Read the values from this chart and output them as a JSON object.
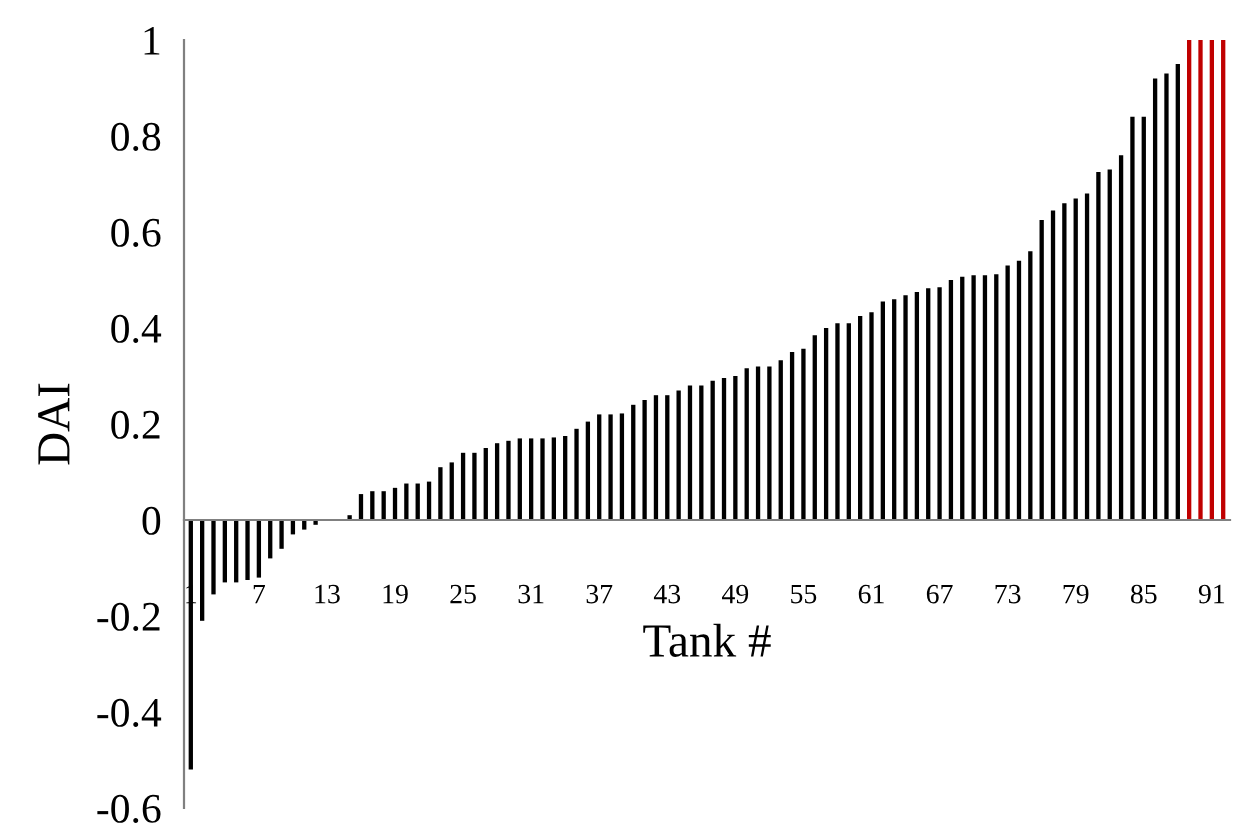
{
  "chart_data": {
    "type": "bar",
    "xlabel": "Tank #",
    "ylabel": "DAI",
    "categories": [
      "1",
      null,
      null,
      null,
      null,
      null,
      "7",
      null,
      null,
      null,
      null,
      null,
      "13",
      null,
      null,
      null,
      null,
      null,
      "19",
      null,
      null,
      null,
      null,
      null,
      "25",
      null,
      null,
      null,
      null,
      null,
      "31",
      null,
      null,
      null,
      null,
      null,
      "37",
      null,
      null,
      null,
      null,
      null,
      "43",
      null,
      null,
      null,
      null,
      null,
      "49",
      null,
      null,
      null,
      null,
      null,
      "55",
      null,
      null,
      null,
      null,
      null,
      "61",
      null,
      null,
      null,
      null,
      null,
      "67",
      null,
      null,
      null,
      null,
      null,
      "73",
      null,
      null,
      null,
      null,
      null,
      "79",
      null,
      null,
      null,
      null,
      null,
      "85",
      null,
      null,
      null,
      null,
      null,
      "91",
      null
    ],
    "values": [
      -0.52,
      -0.21,
      -0.155,
      -0.13,
      -0.13,
      -0.125,
      -0.12,
      -0.08,
      -0.06,
      -0.03,
      -0.02,
      -0.01,
      0,
      0,
      0.01,
      0.054,
      0.06,
      0.06,
      0.067,
      0.076,
      0.076,
      0.08,
      0.11,
      0.12,
      0.14,
      0.14,
      0.15,
      0.16,
      0.165,
      0.17,
      0.17,
      0.17,
      0.172,
      0.175,
      0.19,
      0.205,
      0.22,
      0.22,
      0.222,
      0.24,
      0.25,
      0.26,
      0.26,
      0.27,
      0.28,
      0.28,
      0.29,
      0.296,
      0.3,
      0.316,
      0.32,
      0.32,
      0.333,
      0.35,
      0.357,
      0.385,
      0.4,
      0.41,
      0.41,
      0.425,
      0.433,
      0.455,
      0.46,
      0.468,
      0.475,
      0.483,
      0.485,
      0.5,
      0.507,
      0.51,
      0.51,
      0.512,
      0.53,
      0.54,
      0.56,
      0.625,
      0.645,
      0.66,
      0.67,
      0.68,
      0.725,
      0.73,
      0.76,
      0.84,
      0.84,
      0.92,
      0.93,
      0.95,
      1,
      1,
      1,
      1
    ],
    "colors": [
      "#000000",
      "#000000",
      "#000000",
      "#000000",
      "#000000",
      "#000000",
      "#000000",
      "#000000",
      "#000000",
      "#000000",
      "#000000",
      "#000000",
      "#000000",
      "#000000",
      "#000000",
      "#000000",
      "#000000",
      "#000000",
      "#000000",
      "#000000",
      "#000000",
      "#000000",
      "#000000",
      "#000000",
      "#000000",
      "#000000",
      "#000000",
      "#000000",
      "#000000",
      "#000000",
      "#000000",
      "#000000",
      "#000000",
      "#000000",
      "#000000",
      "#000000",
      "#000000",
      "#000000",
      "#000000",
      "#000000",
      "#000000",
      "#000000",
      "#000000",
      "#000000",
      "#000000",
      "#000000",
      "#000000",
      "#000000",
      "#000000",
      "#000000",
      "#000000",
      "#000000",
      "#000000",
      "#000000",
      "#000000",
      "#000000",
      "#000000",
      "#000000",
      "#000000",
      "#000000",
      "#000000",
      "#000000",
      "#000000",
      "#000000",
      "#000000",
      "#000000",
      "#000000",
      "#000000",
      "#000000",
      "#000000",
      "#000000",
      "#000000",
      "#000000",
      "#000000",
      "#000000",
      "#000000",
      "#000000",
      "#000000",
      "#000000",
      "#000000",
      "#000000",
      "#000000",
      "#000000",
      "#000000",
      "#000000",
      "#000000",
      "#000000",
      "#000000",
      "#c00000",
      "#c00000",
      "#c00000",
      "#c00000"
    ],
    "ylim": [
      -0.6,
      1
    ],
    "yticks": [
      -0.6,
      -0.4,
      -0.2,
      0,
      0.2,
      0.4,
      0.6,
      0.8,
      1
    ],
    "grid": false,
    "legend": false
  }
}
